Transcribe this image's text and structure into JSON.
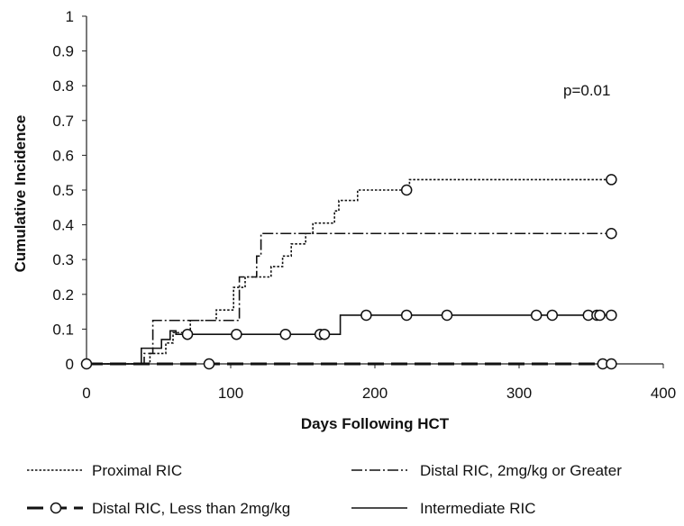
{
  "chart_data": {
    "type": "line",
    "title": "",
    "xlabel": "Days Following HCT",
    "ylabel": "Cumulative Incidence",
    "xlim": [
      0,
      400
    ],
    "ylim": [
      0,
      1
    ],
    "x_ticks": [
      0,
      100,
      200,
      300,
      400
    ],
    "x_tick_labels": [
      "0",
      "100",
      "200",
      "300",
      "400"
    ],
    "y_ticks": [
      0,
      0.1,
      0.2,
      0.3,
      0.4,
      0.5,
      0.6,
      0.7,
      0.8,
      0.9,
      1
    ],
    "y_tick_labels": [
      "0",
      "0.1",
      "0.2",
      "0.3",
      "0.4",
      "0.5",
      "0.6",
      "0.7",
      "0.8",
      "0.9",
      "1"
    ],
    "grid": false,
    "legend_position": "bottom",
    "annotation": "p=0.01",
    "series": [
      {
        "name": "Proximal RIC",
        "style": "dotted",
        "steps": [
          [
            0,
            0
          ],
          [
            44,
            0
          ],
          [
            44,
            0.03
          ],
          [
            55,
            0.03
          ],
          [
            55,
            0.06
          ],
          [
            60,
            0.06
          ],
          [
            60,
            0.09
          ],
          [
            72,
            0.09
          ],
          [
            72,
            0.125
          ],
          [
            90,
            0.125
          ],
          [
            90,
            0.155
          ],
          [
            102,
            0.155
          ],
          [
            102,
            0.22
          ],
          [
            110,
            0.22
          ],
          [
            110,
            0.25
          ],
          [
            128,
            0.25
          ],
          [
            128,
            0.28
          ],
          [
            136,
            0.28
          ],
          [
            136,
            0.31
          ],
          [
            142,
            0.31
          ],
          [
            142,
            0.345
          ],
          [
            152,
            0.345
          ],
          [
            152,
            0.375
          ],
          [
            157,
            0.375
          ],
          [
            157,
            0.405
          ],
          [
            172,
            0.405
          ],
          [
            172,
            0.44
          ],
          [
            175,
            0.44
          ],
          [
            175,
            0.47
          ],
          [
            188,
            0.47
          ],
          [
            188,
            0.5
          ],
          [
            224,
            0.5
          ],
          [
            224,
            0.53
          ],
          [
            364,
            0.53
          ]
        ],
        "censored": [
          [
            222,
            0.5
          ],
          [
            364,
            0.53
          ]
        ]
      },
      {
        "name": "Distal RIC, 2mg/kg or Greater",
        "style": "dash-dot",
        "steps": [
          [
            0,
            0
          ],
          [
            40,
            0
          ],
          [
            40,
            0.03
          ],
          [
            46,
            0.03
          ],
          [
            46,
            0.125
          ],
          [
            106,
            0.125
          ],
          [
            106,
            0.25
          ],
          [
            118,
            0.25
          ],
          [
            118,
            0.31
          ],
          [
            121,
            0.31
          ],
          [
            121,
            0.375
          ],
          [
            364,
            0.375
          ]
        ],
        "censored": [
          [
            364,
            0.375
          ]
        ]
      },
      {
        "name": "Distal RIC, Less than 2mg/kg",
        "style": "dashed-bold",
        "steps": [
          [
            0,
            0
          ],
          [
            364,
            0
          ]
        ],
        "censored": [
          [
            0,
            0
          ],
          [
            85,
            0
          ],
          [
            358,
            0
          ],
          [
            364,
            0
          ]
        ]
      },
      {
        "name": "Intermediate RIC",
        "style": "solid",
        "steps": [
          [
            0,
            0
          ],
          [
            38,
            0
          ],
          [
            38,
            0.045
          ],
          [
            52,
            0.045
          ],
          [
            52,
            0.07
          ],
          [
            58,
            0.07
          ],
          [
            58,
            0.095
          ],
          [
            62,
            0.095
          ],
          [
            62,
            0.085
          ],
          [
            176,
            0.085
          ],
          [
            176,
            0.14
          ],
          [
            364,
            0.14
          ]
        ],
        "censored": [
          [
            70,
            0.085
          ],
          [
            104,
            0.085
          ],
          [
            138,
            0.085
          ],
          [
            162,
            0.085
          ],
          [
            165,
            0.085
          ],
          [
            194,
            0.14
          ],
          [
            222,
            0.14
          ],
          [
            250,
            0.14
          ],
          [
            312,
            0.14
          ],
          [
            323,
            0.14
          ],
          [
            348,
            0.14
          ],
          [
            354,
            0.14
          ],
          [
            356,
            0.14
          ],
          [
            364,
            0.14
          ]
        ]
      }
    ]
  }
}
